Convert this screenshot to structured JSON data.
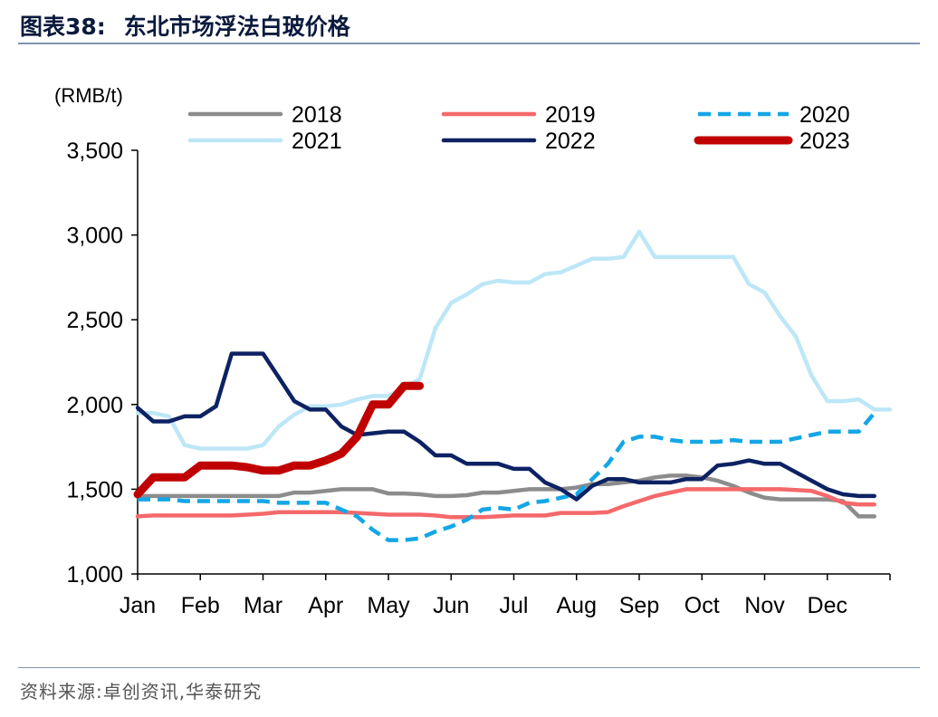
{
  "figure": {
    "title_prefix": "图表38:",
    "title_text": "东北市场浮法白玻价格",
    "source": "资料来源:卓创资讯,华泰研究"
  },
  "chart_data": {
    "type": "line",
    "ylabel": "(RMB/t)",
    "ylim": [
      1000,
      3500
    ],
    "yticks": [
      1000,
      1500,
      2000,
      2500,
      3000,
      3500
    ],
    "ytick_labels": [
      "1,000",
      "1,500",
      "2,000",
      "2,500",
      "3,000",
      "3,500"
    ],
    "xlim": [
      0,
      12
    ],
    "months": [
      "Jan",
      "Feb",
      "Mar",
      "Apr",
      "May",
      "Jun",
      "Jul",
      "Aug",
      "Sep",
      "Oct",
      "Nov",
      "Dec"
    ],
    "legend_position": "top",
    "grid": false,
    "series": [
      {
        "name": "2018",
        "color": "#8c8c8c",
        "dash": "",
        "width": 4.5,
        "points": [
          [
            0,
            1460
          ],
          [
            0.25,
            1460
          ],
          [
            0.5,
            1460
          ],
          [
            0.75,
            1460
          ],
          [
            1,
            1460
          ],
          [
            1.25,
            1460
          ],
          [
            1.5,
            1460
          ],
          [
            1.75,
            1460
          ],
          [
            2,
            1460
          ],
          [
            2.25,
            1460
          ],
          [
            2.5,
            1480
          ],
          [
            2.75,
            1480
          ],
          [
            3,
            1490
          ],
          [
            3.25,
            1500
          ],
          [
            3.5,
            1500
          ],
          [
            3.75,
            1500
          ],
          [
            4,
            1475
          ],
          [
            4.25,
            1475
          ],
          [
            4.5,
            1470
          ],
          [
            4.75,
            1460
          ],
          [
            5,
            1460
          ],
          [
            5.25,
            1465
          ],
          [
            5.5,
            1480
          ],
          [
            5.75,
            1480
          ],
          [
            6,
            1490
          ],
          [
            6.25,
            1500
          ],
          [
            6.5,
            1500
          ],
          [
            6.75,
            1500
          ],
          [
            7,
            1510
          ],
          [
            7.25,
            1530
          ],
          [
            7.5,
            1530
          ],
          [
            7.75,
            1540
          ],
          [
            8,
            1550
          ],
          [
            8.25,
            1570
          ],
          [
            8.5,
            1580
          ],
          [
            8.75,
            1580
          ],
          [
            9,
            1570
          ],
          [
            9.25,
            1550
          ],
          [
            9.5,
            1520
          ],
          [
            9.75,
            1480
          ],
          [
            10,
            1450
          ],
          [
            10.25,
            1440
          ],
          [
            10.5,
            1440
          ],
          [
            10.75,
            1440
          ],
          [
            11,
            1440
          ],
          [
            11.25,
            1430
          ],
          [
            11.5,
            1340
          ],
          [
            11.75,
            1340
          ]
        ]
      },
      {
        "name": "2019",
        "color": "#f4696b",
        "dash": "",
        "width": 4.5,
        "points": [
          [
            0,
            1340
          ],
          [
            0.25,
            1345
          ],
          [
            0.5,
            1345
          ],
          [
            0.75,
            1345
          ],
          [
            1,
            1345
          ],
          [
            1.25,
            1345
          ],
          [
            1.5,
            1345
          ],
          [
            1.75,
            1350
          ],
          [
            2,
            1355
          ],
          [
            2.25,
            1365
          ],
          [
            2.5,
            1365
          ],
          [
            2.75,
            1365
          ],
          [
            3,
            1365
          ],
          [
            3.25,
            1365
          ],
          [
            3.5,
            1360
          ],
          [
            3.75,
            1355
          ],
          [
            4,
            1350
          ],
          [
            4.25,
            1350
          ],
          [
            4.5,
            1350
          ],
          [
            4.75,
            1345
          ],
          [
            5,
            1335
          ],
          [
            5.25,
            1335
          ],
          [
            5.5,
            1335
          ],
          [
            5.75,
            1340
          ],
          [
            6,
            1345
          ],
          [
            6.25,
            1345
          ],
          [
            6.5,
            1345
          ],
          [
            6.75,
            1360
          ],
          [
            7,
            1360
          ],
          [
            7.25,
            1360
          ],
          [
            7.5,
            1365
          ],
          [
            7.75,
            1400
          ],
          [
            8,
            1430
          ],
          [
            8.25,
            1460
          ],
          [
            8.5,
            1480
          ],
          [
            8.75,
            1500
          ],
          [
            9,
            1500
          ],
          [
            9.25,
            1500
          ],
          [
            9.5,
            1500
          ],
          [
            9.75,
            1500
          ],
          [
            10,
            1500
          ],
          [
            10.25,
            1500
          ],
          [
            10.5,
            1495
          ],
          [
            10.75,
            1490
          ],
          [
            11,
            1460
          ],
          [
            11.25,
            1420
          ],
          [
            11.5,
            1410
          ],
          [
            11.75,
            1410
          ]
        ]
      },
      {
        "name": "2020",
        "color": "#14a6e6",
        "dash": "14,8",
        "width": 4.5,
        "points": [
          [
            0,
            1440
          ],
          [
            0.25,
            1440
          ],
          [
            0.5,
            1440
          ],
          [
            0.75,
            1430
          ],
          [
            1,
            1430
          ],
          [
            1.25,
            1430
          ],
          [
            1.5,
            1430
          ],
          [
            1.75,
            1430
          ],
          [
            2,
            1430
          ],
          [
            2.25,
            1420
          ],
          [
            2.5,
            1420
          ],
          [
            2.75,
            1420
          ],
          [
            3,
            1420
          ],
          [
            3.25,
            1380
          ],
          [
            3.5,
            1340
          ],
          [
            3.75,
            1260
          ],
          [
            4,
            1200
          ],
          [
            4.25,
            1200
          ],
          [
            4.5,
            1210
          ],
          [
            4.75,
            1250
          ],
          [
            5,
            1280
          ],
          [
            5.25,
            1320
          ],
          [
            5.5,
            1380
          ],
          [
            5.75,
            1390
          ],
          [
            6,
            1380
          ],
          [
            6.25,
            1420
          ],
          [
            6.5,
            1430
          ],
          [
            6.75,
            1450
          ],
          [
            7,
            1470
          ],
          [
            7.25,
            1560
          ],
          [
            7.5,
            1650
          ],
          [
            7.75,
            1780
          ],
          [
            8,
            1810
          ],
          [
            8.25,
            1810
          ],
          [
            8.5,
            1790
          ],
          [
            8.75,
            1780
          ],
          [
            9,
            1780
          ],
          [
            9.25,
            1780
          ],
          [
            9.5,
            1790
          ],
          [
            9.75,
            1780
          ],
          [
            10,
            1780
          ],
          [
            10.25,
            1780
          ],
          [
            10.5,
            1800
          ],
          [
            10.75,
            1820
          ],
          [
            11,
            1840
          ],
          [
            11.25,
            1840
          ],
          [
            11.5,
            1840
          ],
          [
            11.75,
            1950
          ]
        ]
      },
      {
        "name": "2021",
        "color": "#bde7f7",
        "dash": "",
        "width": 4.5,
        "points": [
          [
            0,
            1950
          ],
          [
            0.25,
            1950
          ],
          [
            0.5,
            1930
          ],
          [
            0.75,
            1760
          ],
          [
            1,
            1740
          ],
          [
            1.25,
            1740
          ],
          [
            1.5,
            1740
          ],
          [
            1.75,
            1740
          ],
          [
            2,
            1760
          ],
          [
            2.25,
            1870
          ],
          [
            2.5,
            1940
          ],
          [
            2.75,
            1990
          ],
          [
            3,
            1990
          ],
          [
            3.25,
            2000
          ],
          [
            3.5,
            2030
          ],
          [
            3.75,
            2050
          ],
          [
            4,
            2050
          ],
          [
            4.25,
            2100
          ],
          [
            4.5,
            2150
          ],
          [
            4.75,
            2450
          ],
          [
            5,
            2600
          ],
          [
            5.25,
            2650
          ],
          [
            5.5,
            2710
          ],
          [
            5.75,
            2730
          ],
          [
            6,
            2720
          ],
          [
            6.25,
            2720
          ],
          [
            6.5,
            2770
          ],
          [
            6.75,
            2780
          ],
          [
            7,
            2820
          ],
          [
            7.25,
            2860
          ],
          [
            7.5,
            2860
          ],
          [
            7.75,
            2870
          ],
          [
            8,
            3020
          ],
          [
            8.25,
            2870
          ],
          [
            8.5,
            2870
          ],
          [
            8.75,
            2870
          ],
          [
            9,
            2870
          ],
          [
            9.25,
            2870
          ],
          [
            9.5,
            2870
          ],
          [
            9.75,
            2710
          ],
          [
            10,
            2660
          ],
          [
            10.25,
            2520
          ],
          [
            10.5,
            2400
          ],
          [
            10.75,
            2170
          ],
          [
            11,
            2020
          ],
          [
            11.25,
            2020
          ],
          [
            11.5,
            2030
          ],
          [
            11.75,
            1970
          ],
          [
            12,
            1970
          ]
        ]
      },
      {
        "name": "2022",
        "color": "#0d2263",
        "dash": "",
        "width": 4.5,
        "points": [
          [
            0,
            1980
          ],
          [
            0.25,
            1900
          ],
          [
            0.5,
            1900
          ],
          [
            0.75,
            1930
          ],
          [
            1,
            1930
          ],
          [
            1.25,
            1990
          ],
          [
            1.5,
            2300
          ],
          [
            1.75,
            2300
          ],
          [
            2,
            2300
          ],
          [
            2.25,
            2160
          ],
          [
            2.5,
            2020
          ],
          [
            2.75,
            1970
          ],
          [
            3,
            1970
          ],
          [
            3.25,
            1870
          ],
          [
            3.5,
            1820
          ],
          [
            3.75,
            1830
          ],
          [
            4,
            1840
          ],
          [
            4.25,
            1840
          ],
          [
            4.5,
            1780
          ],
          [
            4.75,
            1700
          ],
          [
            5,
            1700
          ],
          [
            5.25,
            1650
          ],
          [
            5.5,
            1650
          ],
          [
            5.75,
            1650
          ],
          [
            6,
            1620
          ],
          [
            6.25,
            1620
          ],
          [
            6.5,
            1540
          ],
          [
            6.75,
            1500
          ],
          [
            7,
            1440
          ],
          [
            7.25,
            1520
          ],
          [
            7.5,
            1560
          ],
          [
            7.75,
            1560
          ],
          [
            8,
            1540
          ],
          [
            8.25,
            1540
          ],
          [
            8.5,
            1540
          ],
          [
            8.75,
            1560
          ],
          [
            9,
            1560
          ],
          [
            9.25,
            1640
          ],
          [
            9.5,
            1650
          ],
          [
            9.75,
            1670
          ],
          [
            10,
            1650
          ],
          [
            10.25,
            1650
          ],
          [
            10.5,
            1600
          ],
          [
            10.75,
            1550
          ],
          [
            11,
            1500
          ],
          [
            11.25,
            1470
          ],
          [
            11.5,
            1460
          ],
          [
            11.75,
            1460
          ]
        ]
      },
      {
        "name": "2023",
        "color": "#c00000",
        "dash": "",
        "width": 9,
        "points": [
          [
            0,
            1470
          ],
          [
            0.25,
            1570
          ],
          [
            0.5,
            1570
          ],
          [
            0.75,
            1570
          ],
          [
            1,
            1640
          ],
          [
            1.25,
            1640
          ],
          [
            1.5,
            1640
          ],
          [
            1.75,
            1630
          ],
          [
            2,
            1610
          ],
          [
            2.25,
            1610
          ],
          [
            2.5,
            1640
          ],
          [
            2.75,
            1640
          ],
          [
            3,
            1670
          ],
          [
            3.25,
            1710
          ],
          [
            3.5,
            1810
          ],
          [
            3.75,
            2000
          ],
          [
            4,
            2000
          ],
          [
            4.25,
            2110
          ],
          [
            4.5,
            2110
          ]
        ]
      }
    ]
  }
}
